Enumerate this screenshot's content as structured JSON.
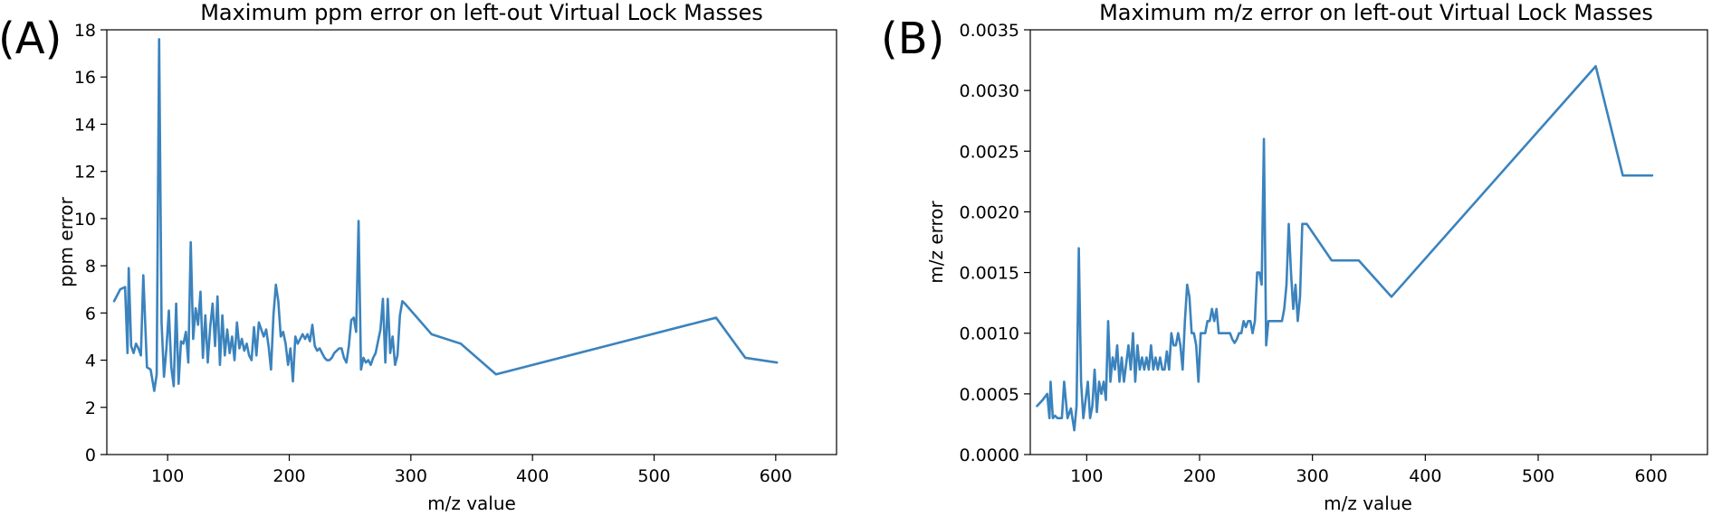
{
  "chart_data": [
    {
      "panel": "(A)",
      "type": "line",
      "title": "Maximum ppm error on left-out Virtual Lock Masses",
      "xlabel": "m/z value",
      "ylabel": "ppm error",
      "xlim": [
        50,
        650
      ],
      "ylim": [
        0,
        18
      ],
      "xticks": [
        100,
        200,
        300,
        400,
        500,
        600
      ],
      "yticks": [
        0,
        2,
        4,
        6,
        8,
        10,
        12,
        14,
        16,
        18
      ],
      "grid": false,
      "color": "#3b83bd",
      "series": [
        {
          "x": [
            56,
            61,
            65,
            67,
            68,
            70,
            72,
            74,
            76,
            78,
            80,
            83,
            86,
            89,
            91,
            93,
            95,
            97,
            99,
            101,
            103,
            105,
            107,
            109,
            111,
            113,
            115,
            117,
            119,
            121,
            123,
            125,
            127,
            129,
            131,
            133,
            135,
            137,
            139,
            141,
            143,
            145,
            147,
            149,
            151,
            153,
            155,
            157,
            159,
            161,
            163,
            165,
            167,
            169,
            171,
            173,
            175,
            177,
            179,
            181,
            183,
            185,
            187,
            189,
            191,
            193,
            195,
            197,
            199,
            201,
            203,
            205,
            207,
            209,
            211,
            213,
            215,
            217,
            219,
            221,
            223,
            225,
            227,
            229,
            231,
            233,
            235,
            237,
            239,
            241,
            243,
            245,
            247,
            249,
            251,
            253,
            255,
            257,
            259,
            261,
            263,
            265,
            267,
            269,
            271,
            273,
            275,
            277,
            279,
            281,
            283,
            285,
            287,
            289,
            291,
            293,
            295,
            317,
            341,
            370,
            551,
            575,
            601
          ],
          "y": [
            6.5,
            7.0,
            7.1,
            4.3,
            7.9,
            4.6,
            4.3,
            4.7,
            4.5,
            4.2,
            7.6,
            3.7,
            3.6,
            2.7,
            3.4,
            17.6,
            5.6,
            3.3,
            4.5,
            6.1,
            3.7,
            2.9,
            6.4,
            3.0,
            4.8,
            4.7,
            5.2,
            3.9,
            9.0,
            4.9,
            6.2,
            5.5,
            6.9,
            4.1,
            5.9,
            3.9,
            5.4,
            6.4,
            4.6,
            6.7,
            3.8,
            5.9,
            4.2,
            5.3,
            4.3,
            5.0,
            4.0,
            5.6,
            4.5,
            4.9,
            4.4,
            4.7,
            4.2,
            4.0,
            5.4,
            4.2,
            5.6,
            5.3,
            5.0,
            5.3,
            4.6,
            3.6,
            5.9,
            7.2,
            6.5,
            5.0,
            5.2,
            4.7,
            3.8,
            4.5,
            3.1,
            5.0,
            4.7,
            4.9,
            5.1,
            4.9,
            5.1,
            4.8,
            5.5,
            4.6,
            4.4,
            4.5,
            4.3,
            4.1,
            4.0,
            4.0,
            4.1,
            4.3,
            4.4,
            4.5,
            4.5,
            4.1,
            3.9,
            4.6,
            5.7,
            5.8,
            5.2,
            9.9,
            3.6,
            4.1,
            3.9,
            4.0,
            3.8,
            4.1,
            4.3,
            4.8,
            5.3,
            6.6,
            3.9,
            6.6,
            4.3,
            5.0,
            3.8,
            4.2,
            5.9,
            6.5,
            6.4,
            5.1,
            4.7,
            3.4,
            5.8,
            4.1,
            3.9
          ]
        }
      ]
    },
    {
      "panel": "(B)",
      "type": "line",
      "title": "Maximum m/z error on left-out Virtual Lock Masses",
      "xlabel": "m/z value",
      "ylabel": "m/z error",
      "xlim": [
        50,
        650
      ],
      "ylim": [
        0,
        0.0035
      ],
      "xticks": [
        100,
        200,
        300,
        400,
        500,
        600
      ],
      "yticks": [
        0,
        0.0005,
        0.001,
        0.0015,
        0.002,
        0.0025,
        0.003,
        0.0035
      ],
      "ytick_labels": [
        "0.0000",
        "0.0005",
        "0.0010",
        "0.0015",
        "0.0020",
        "0.0025",
        "0.0030",
        "0.0035"
      ],
      "grid": false,
      "color": "#3b83bd",
      "series": [
        {
          "x": [
            56,
            61,
            65,
            67,
            68,
            70,
            72,
            74,
            76,
            78,
            80,
            83,
            86,
            89,
            91,
            93,
            95,
            97,
            99,
            101,
            103,
            105,
            107,
            109,
            111,
            113,
            115,
            117,
            119,
            121,
            123,
            125,
            127,
            129,
            131,
            133,
            135,
            137,
            139,
            141,
            143,
            145,
            147,
            149,
            151,
            153,
            155,
            157,
            159,
            161,
            163,
            165,
            167,
            169,
            171,
            173,
            175,
            177,
            179,
            181,
            183,
            185,
            187,
            189,
            191,
            193,
            195,
            197,
            199,
            201,
            203,
            205,
            207,
            209,
            211,
            213,
            215,
            217,
            219,
            221,
            223,
            225,
            227,
            229,
            231,
            233,
            235,
            237,
            239,
            241,
            243,
            245,
            247,
            249,
            251,
            253,
            255,
            257,
            259,
            261,
            263,
            265,
            267,
            269,
            271,
            273,
            275,
            277,
            279,
            281,
            283,
            285,
            287,
            289,
            291,
            293,
            295,
            317,
            341,
            370,
            551,
            575,
            601
          ],
          "y": [
            0.0004,
            0.00045,
            0.0005,
            0.0003,
            0.0006,
            0.0003,
            0.00032,
            0.0003,
            0.0003,
            0.0003,
            0.0006,
            0.0003,
            0.00038,
            0.0002,
            0.0004,
            0.0017,
            0.0006,
            0.0003,
            0.00045,
            0.0006,
            0.0003,
            0.0004,
            0.0007,
            0.00035,
            0.0006,
            0.0005,
            0.0006,
            0.00045,
            0.0011,
            0.0006,
            0.0008,
            0.0007,
            0.0009,
            0.0006,
            0.0008,
            0.0006,
            0.00075,
            0.0009,
            0.0007,
            0.001,
            0.0006,
            0.0009,
            0.0007,
            0.0008,
            0.0007,
            0.0008,
            0.0007,
            0.0009,
            0.0007,
            0.0008,
            0.0007,
            0.0008,
            0.0007,
            0.0007,
            0.00085,
            0.0007,
            0.001,
            0.0009,
            0.0009,
            0.001,
            0.0009,
            0.0007,
            0.0011,
            0.0014,
            0.0013,
            0.001,
            0.001,
            0.0009,
            0.0006,
            0.001,
            0.001,
            0.001,
            0.0011,
            0.0011,
            0.0012,
            0.0011,
            0.0012,
            0.001,
            0.001,
            0.001,
            0.001,
            0.001,
            0.001,
            0.00095,
            0.00092,
            0.00095,
            0.001,
            0.001,
            0.0011,
            0.00105,
            0.0011,
            0.0011,
            0.001,
            0.0011,
            0.0015,
            0.0015,
            0.0014,
            0.0026,
            0.0009,
            0.0011,
            0.0011,
            0.0011,
            0.0011,
            0.0011,
            0.0011,
            0.0011,
            0.0012,
            0.0014,
            0.0019,
            0.0015,
            0.0012,
            0.0014,
            0.0011,
            0.0013,
            0.0019,
            0.0019,
            0.0019,
            0.0016,
            0.0016,
            0.0013,
            0.0032,
            0.0023,
            0.0023
          ]
        }
      ]
    }
  ]
}
